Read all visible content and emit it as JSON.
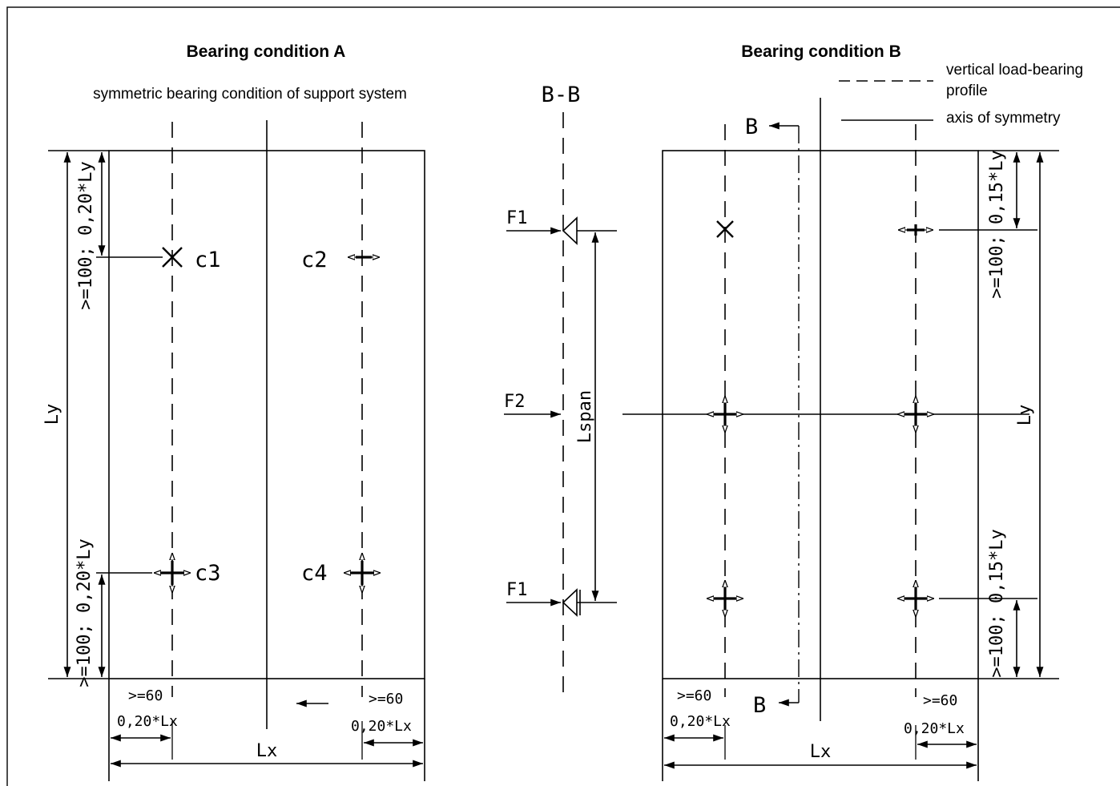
{
  "panel_a": {
    "title": "Bearing condition A",
    "subtitle": "symmetric bearing condition of support system",
    "labels": {
      "c1": "c1",
      "c2": "c2",
      "c3": "c3",
      "c4": "c4"
    },
    "dims": {
      "top": ">=100; 0,20*Ly",
      "bottom": ">=100; 0,20*Ly",
      "height": "Ly",
      "width": "Lx",
      "left_min": ">=60",
      "left_frac": "0,20*Lx",
      "right_min": ">=60",
      "right_frac": "0,20*Lx"
    }
  },
  "section": {
    "title": "B-B",
    "forces": {
      "f1_top": "F1",
      "f2": "F2",
      "f1_bottom": "F1"
    },
    "span": "Lspan"
  },
  "panel_b": {
    "title": "Bearing condition B",
    "legend": {
      "dashed": "vertical load-bearing",
      "dashed_2": "profile",
      "solid": "axis of symmetry"
    },
    "section_marks": {
      "top": "B",
      "bottom": "B"
    },
    "dims": {
      "top": ">=100; 0,15*Ly",
      "bottom": ">=100; 0,15*Ly",
      "height": "Ly",
      "width": "Lx",
      "left_min": ">=60",
      "left_frac": "0,20*Lx",
      "right_min": ">=60",
      "right_frac": "0,20*Lx"
    }
  }
}
